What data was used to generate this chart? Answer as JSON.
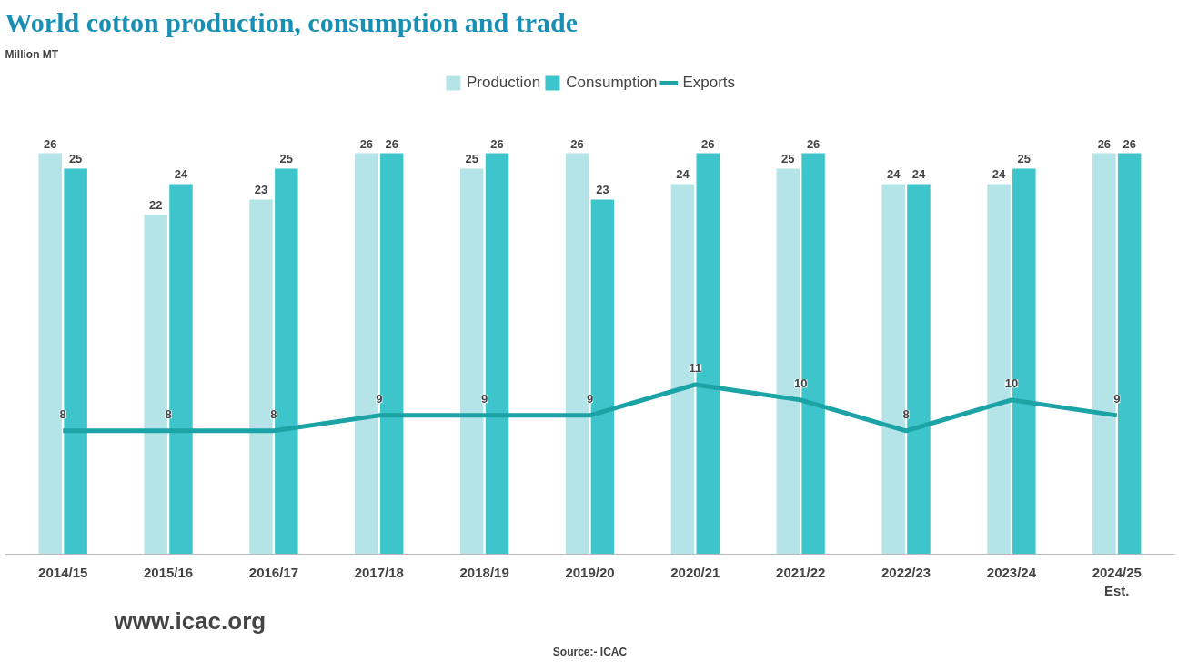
{
  "chart_data": {
    "type": "bar",
    "title": "World cotton production, consumption and trade",
    "categories": [
      "2014/15",
      "2015/16",
      "2016/17",
      "2017/18",
      "2018/19",
      "2019/20",
      "2020/21",
      "2021/22",
      "2022/23",
      "2023/24",
      "2024/25\nEst."
    ],
    "series": [
      {
        "name": "Production",
        "color": "#b5e4e8",
        "values": [
          26,
          22,
          23,
          26,
          25,
          26,
          24,
          25,
          24,
          24,
          26
        ]
      },
      {
        "name": "Consumption",
        "color": "#3ec4cb",
        "values": [
          25,
          24,
          25,
          26,
          26,
          23,
          26,
          26,
          24,
          25,
          26
        ]
      },
      {
        "name": "Exports",
        "type": "line",
        "color": "#1ba3a6",
        "values": [
          8,
          8,
          8,
          9,
          9,
          9,
          11,
          10,
          8,
          10,
          9
        ]
      }
    ],
    "data_labels": true,
    "legend": "top",
    "grid": false,
    "annotations": [
      "Million MT",
      "www.icac.org",
      "Source:- ICAC"
    ]
  }
}
